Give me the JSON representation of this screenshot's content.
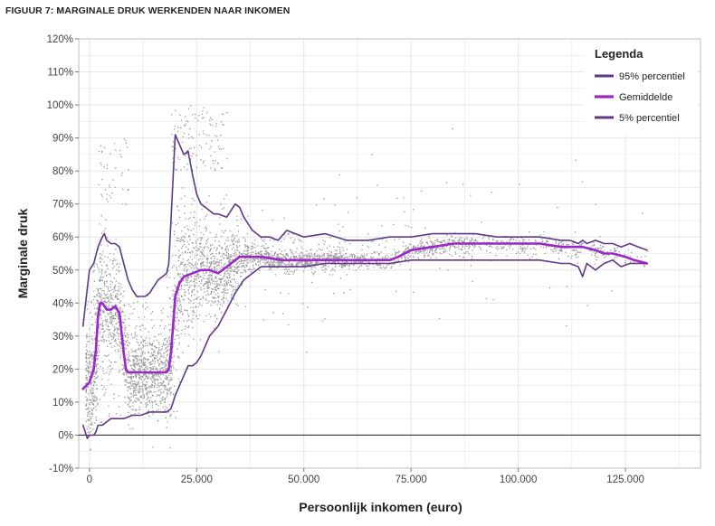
{
  "figure": {
    "title": "FIGUUR 7: MARGINALE DRUK WERKENDEN NAAR INKOMEN"
  },
  "chart_data": {
    "type": "line",
    "xlabel": "Persoonlijk inkomen (euro)",
    "ylabel": "Marginale druk",
    "xlim": [
      -2500,
      142500
    ],
    "ylim": [
      -10,
      120
    ],
    "x_ticks": [
      0,
      25000,
      50000,
      75000,
      100000,
      125000
    ],
    "x_tick_labels": [
      "0",
      "25.000",
      "50.000",
      "75.000",
      "100.000",
      "125.000"
    ],
    "y_ticks": [
      -10,
      0,
      10,
      20,
      30,
      40,
      50,
      60,
      70,
      80,
      90,
      100,
      110,
      120
    ],
    "y_tick_labels": [
      "-10%",
      "0%",
      "10%",
      "20%",
      "30%",
      "40%",
      "50%",
      "60%",
      "70%",
      "80%",
      "90%",
      "100%",
      "110%",
      "120%"
    ],
    "reference_line_y": 0,
    "grid": true,
    "legend": {
      "title": "Legenda",
      "position": "top-right",
      "entries": [
        "95% percentiel",
        "Gemiddelde",
        "5% percentiel"
      ]
    },
    "colors": {
      "p95": "#5e3a86",
      "mean": "#9b27c9",
      "p5": "#5e3a86",
      "scatter": "#9a9a9a",
      "grid": "#e6e6e6",
      "axis": "#555555"
    },
    "series": [
      {
        "name": "95% percentiel",
        "key": "p95",
        "x": [
          -1500,
          0,
          1000,
          2000,
          3000,
          3500,
          4000,
          5000,
          6000,
          7000,
          8000,
          9000,
          10000,
          11000,
          12000,
          13000,
          14000,
          15000,
          16000,
          17000,
          18000,
          18500,
          19000,
          20000,
          21000,
          22000,
          23000,
          24000,
          25000,
          26000,
          27000,
          28000,
          29000,
          30000,
          32000,
          34000,
          35000,
          36000,
          38000,
          40000,
          42000,
          44000,
          46000,
          48000,
          50000,
          55000,
          60000,
          65000,
          70000,
          75000,
          80000,
          85000,
          90000,
          95000,
          100000,
          105000,
          110000,
          112000,
          114000,
          115000,
          116000,
          118000,
          120000,
          122000,
          124000,
          126000,
          128000,
          130000
        ],
        "values": [
          33,
          50,
          52,
          57,
          60,
          61,
          59,
          58,
          58,
          57,
          52,
          47,
          44,
          42,
          42,
          42,
          43,
          45,
          47,
          48,
          49,
          52,
          65,
          91,
          88,
          85,
          86,
          79,
          73,
          70,
          69,
          68,
          67,
          67,
          66,
          70,
          69,
          66,
          62,
          60,
          60,
          59,
          62,
          61,
          60,
          61,
          59,
          59,
          60,
          60,
          61,
          61,
          61,
          60,
          60,
          60,
          59,
          59,
          58,
          59,
          58,
          59,
          58,
          58,
          57,
          58,
          57,
          56
        ]
      },
      {
        "name": "Gemiddelde",
        "key": "mean",
        "x": [
          -1500,
          0,
          500,
          1000,
          1500,
          2000,
          2500,
          3000,
          4000,
          5000,
          6000,
          7000,
          8000,
          8500,
          9000,
          10000,
          12000,
          14000,
          16000,
          17000,
          18000,
          18500,
          19000,
          19500,
          20000,
          21000,
          22000,
          24000,
          26000,
          28000,
          30000,
          32000,
          34000,
          35000,
          40000,
          45000,
          50000,
          55000,
          60000,
          65000,
          70000,
          72000,
          75000,
          80000,
          85000,
          90000,
          95000,
          100000,
          105000,
          110000,
          113000,
          115000,
          118000,
          120000,
          122000,
          125000,
          127000,
          130000
        ],
        "values": [
          14,
          16,
          18,
          20,
          26,
          36,
          40,
          40,
          38,
          38,
          39,
          37,
          25,
          20,
          19,
          19,
          19,
          19,
          19,
          19,
          19,
          20,
          25,
          33,
          42,
          46,
          48,
          49,
          50,
          50,
          49,
          51,
          53,
          54,
          54,
          53,
          53,
          53,
          53,
          53,
          53,
          54,
          56,
          57,
          58,
          58,
          58,
          58,
          58,
          57,
          57,
          57,
          56,
          55,
          55,
          54,
          53,
          52
        ]
      },
      {
        "name": "5% percentiel",
        "key": "p5",
        "x": [
          -1500,
          -500,
          0,
          1000,
          1500,
          2000,
          3000,
          4000,
          5000,
          6000,
          8000,
          10000,
          12000,
          14000,
          16000,
          18000,
          19000,
          20000,
          21000,
          22000,
          23000,
          24000,
          25000,
          26000,
          27000,
          28000,
          30000,
          32000,
          34000,
          36000,
          38000,
          40000,
          45000,
          50000,
          55000,
          60000,
          65000,
          70000,
          75000,
          80000,
          85000,
          90000,
          95000,
          100000,
          105000,
          110000,
          112000,
          114000,
          115000,
          116000,
          118000,
          120000,
          122000,
          124000,
          126000,
          128000,
          130000
        ],
        "values": [
          3,
          -1,
          0,
          0,
          1,
          3,
          3,
          4,
          5,
          5,
          5,
          6,
          6,
          7,
          7,
          7,
          8,
          12,
          15,
          18,
          21,
          21,
          22,
          24,
          27,
          30,
          33,
          38,
          43,
          47,
          49,
          51,
          51,
          51,
          52,
          52,
          52,
          52,
          53,
          53,
          53,
          53,
          53,
          53,
          53,
          52,
          52,
          51,
          48,
          52,
          50,
          52,
          53,
          51,
          52,
          52,
          52
        ]
      }
    ]
  }
}
